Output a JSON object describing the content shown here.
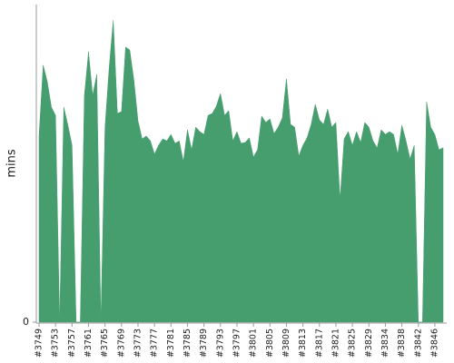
{
  "chart_data": {
    "type": "area",
    "y_label": "mins",
    "categories": [
      "#3749",
      null,
      null,
      null,
      "#3753",
      null,
      null,
      null,
      "#3757",
      null,
      null,
      null,
      "#3761",
      null,
      null,
      null,
      "#3765",
      null,
      null,
      null,
      "#3769",
      null,
      null,
      null,
      "#3773",
      null,
      null,
      null,
      "#3777",
      null,
      null,
      null,
      "#3781",
      null,
      null,
      null,
      "#3785",
      null,
      null,
      null,
      "#3789",
      null,
      null,
      null,
      "#3793",
      null,
      null,
      null,
      "#3797",
      null,
      null,
      null,
      "#3801",
      null,
      null,
      null,
      "#3805",
      null,
      null,
      null,
      "#3809",
      null,
      null,
      null,
      "#3813",
      null,
      null,
      null,
      "#3817",
      null,
      null,
      null,
      "#3821",
      null,
      null,
      null,
      "#3825",
      null,
      null,
      null,
      "#3829",
      null,
      null,
      null,
      "#3834",
      null,
      null,
      null,
      "#3838",
      null,
      null,
      null,
      "#3842",
      null,
      null,
      null,
      "#3846",
      null,
      null
    ],
    "series": [
      {
        "color": "#469e6e",
        "values": [
          58.6,
          80.9,
          75.7,
          67.7,
          65.1,
          0,
          67.7,
          62,
          55.7,
          0,
          0,
          71.4,
          85.1,
          71.4,
          78,
          0,
          61.4,
          80,
          95.1,
          65.7,
          66.3,
          86.6,
          85.7,
          76.3,
          63.4,
          57.7,
          58.6,
          57.1,
          52.9,
          55.7,
          57.7,
          57.1,
          59.1,
          56.3,
          57.1,
          50.6,
          60.6,
          54.3,
          61.4,
          60,
          59.1,
          65.1,
          65.7,
          68,
          72,
          65.1,
          66.6,
          57.1,
          60,
          56.3,
          56.6,
          58,
          52,
          54.3,
          64.9,
          62.9,
          64,
          59.4,
          61.4,
          64.3,
          76.6,
          62.3,
          61.4,
          52.3,
          55.7,
          58,
          62.3,
          68.6,
          63.7,
          62.3,
          67.1,
          61.4,
          62.9,
          38.6,
          57.7,
          60,
          55.7,
          60,
          56.6,
          62.9,
          61.4,
          57.1,
          54.9,
          60.6,
          59.1,
          60,
          59.1,
          52.9,
          62,
          57.1,
          51.4,
          55.7,
          0,
          0,
          69.4,
          61.4,
          59.1,
          54.3,
          54.9
        ]
      }
    ],
    "ylim": [
      0,
      100
    ],
    "yticks": [
      0
    ]
  }
}
